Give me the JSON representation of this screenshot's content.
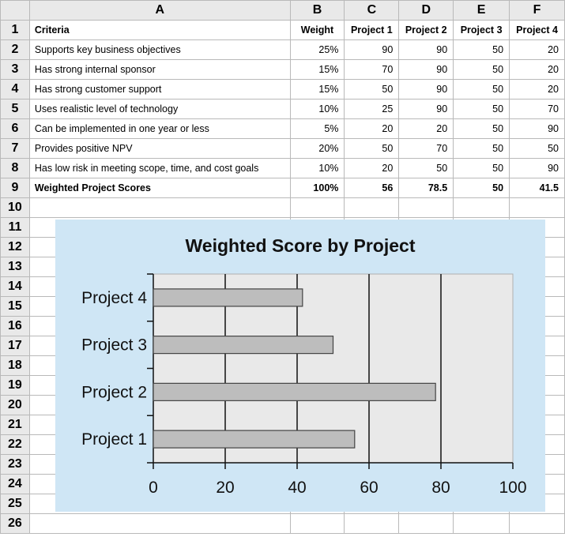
{
  "columns": [
    "A",
    "B",
    "C",
    "D",
    "E",
    "F"
  ],
  "row_numbers": [
    "1",
    "2",
    "3",
    "4",
    "5",
    "6",
    "7",
    "8",
    "9",
    "10",
    "11",
    "12",
    "13",
    "14",
    "15",
    "16",
    "17",
    "18",
    "19",
    "20",
    "21",
    "22",
    "23",
    "24",
    "25",
    "26"
  ],
  "header_row": [
    "Criteria",
    "Weight",
    "Project 1",
    "Project 2",
    "Project 3",
    "Project 4"
  ],
  "rows": [
    [
      "Supports key business objectives",
      "25%",
      "90",
      "90",
      "50",
      "20"
    ],
    [
      "Has strong internal sponsor",
      "15%",
      "70",
      "90",
      "50",
      "20"
    ],
    [
      "Has strong customer support",
      "15%",
      "50",
      "90",
      "50",
      "20"
    ],
    [
      "Uses realistic level of technology",
      "10%",
      "25",
      "90",
      "50",
      "70"
    ],
    [
      "Can be implemented in one year or less",
      "5%",
      "20",
      "20",
      "50",
      "90"
    ],
    [
      "Provides positive NPV",
      "20%",
      "50",
      "70",
      "50",
      "50"
    ],
    [
      "Has low risk in meeting scope, time, and cost goals",
      "10%",
      "20",
      "50",
      "50",
      "90"
    ]
  ],
  "total_row": [
    "Weighted Project Scores",
    "100%",
    "56",
    "78.5",
    "50",
    "41.5"
  ],
  "chart_data": {
    "type": "bar",
    "orientation": "horizontal",
    "title": "Weighted Score by Project",
    "categories": [
      "Project 1",
      "Project 2",
      "Project 3",
      "Project 4"
    ],
    "values": [
      56,
      78.5,
      50,
      41.5
    ],
    "xlim": [
      0,
      100
    ],
    "xticks": [
      "0",
      "20",
      "40",
      "60",
      "80",
      "100"
    ],
    "grid": true,
    "bar_color": "#bdbdbd",
    "background_color": "#cfe6f5",
    "plot_color": "#e9e9e9"
  }
}
